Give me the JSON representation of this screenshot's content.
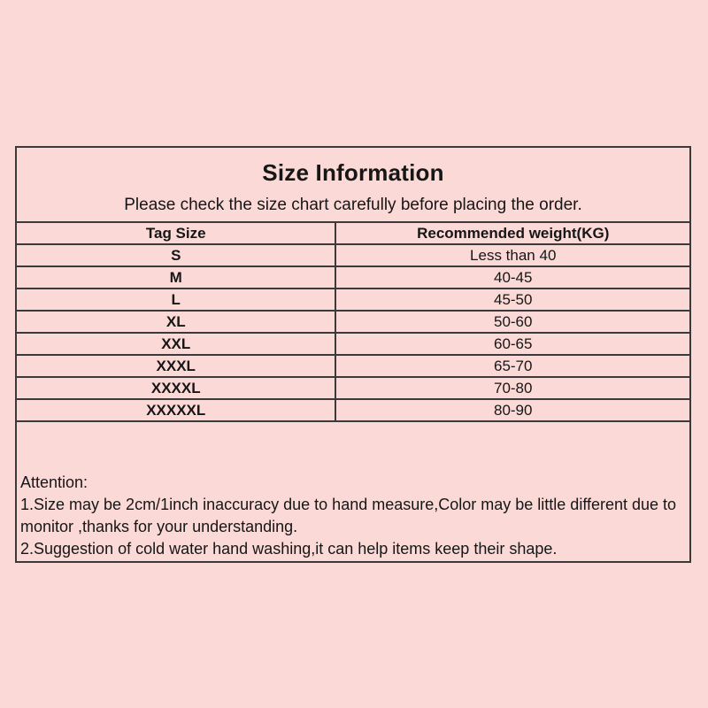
{
  "page": {
    "background_color": "#fbd9d6",
    "border_color": "#3a3a3a",
    "text_color": "#161616"
  },
  "size_info": {
    "title": "Size Information",
    "subtitle": "Please check the size chart carefully before placing the order.",
    "table": {
      "columns": [
        "Tag Size",
        "Recommended weight(KG)"
      ],
      "rows": [
        [
          "S",
          "Less than 40"
        ],
        [
          "M",
          "40-45"
        ],
        [
          "L",
          "45-50"
        ],
        [
          "XL",
          "50-60"
        ],
        [
          "XXL",
          "60-65"
        ],
        [
          "XXXL",
          "65-70"
        ],
        [
          "XXXXL",
          "70-80"
        ],
        [
          "XXXXXL",
          "80-90"
        ]
      ]
    },
    "attention": {
      "heading": "Attention:",
      "notes": [
        "1.Size may be 2cm/1inch inaccuracy due to hand measure,Color may be little different due to monitor ,thanks for your understanding.",
        "2.Suggestion of cold water hand washing,it can help items keep their shape."
      ]
    }
  }
}
